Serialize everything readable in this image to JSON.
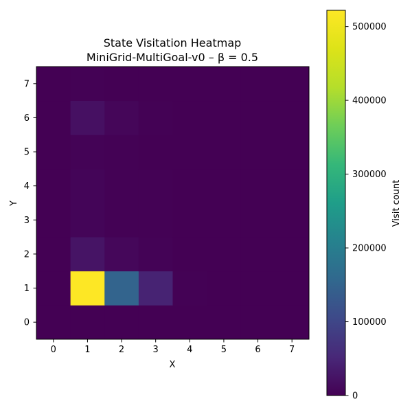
{
  "chart_data": {
    "type": "heatmap",
    "title": "State Visitation Heatmap",
    "subtitle": "MiniGrid-MultiGoal-v0 – β = 0.5",
    "xlabel": "X",
    "ylabel": "Y",
    "colorbar_label": "Visit count",
    "colormap": "viridis",
    "x_ticks": [
      "0",
      "1",
      "2",
      "3",
      "4",
      "5",
      "6",
      "7"
    ],
    "y_ticks": [
      "0",
      "1",
      "2",
      "3",
      "4",
      "5",
      "6",
      "7"
    ],
    "colorbar_ticks": [
      "0",
      "100000",
      "200000",
      "300000",
      "400000",
      "500000"
    ],
    "vmin": 0,
    "vmax": 522000,
    "grid": false,
    "cells_note_rows_y0_to_y7": true,
    "values": [
      [
        0,
        0,
        0,
        0,
        0,
        0,
        0,
        0
      ],
      [
        0,
        522000,
        150000,
        45000,
        1000,
        0,
        0,
        0
      ],
      [
        0,
        25000,
        8000,
        3000,
        0,
        0,
        0,
        0
      ],
      [
        0,
        6000,
        2000,
        1000,
        0,
        0,
        0,
        0
      ],
      [
        0,
        6000,
        2000,
        1000,
        0,
        0,
        0,
        0
      ],
      [
        0,
        3000,
        1000,
        500,
        0,
        0,
        0,
        0
      ],
      [
        0,
        20000,
        7000,
        1500,
        0,
        0,
        0,
        0
      ],
      [
        0,
        1000,
        500,
        0,
        0,
        0,
        0,
        0
      ]
    ]
  }
}
